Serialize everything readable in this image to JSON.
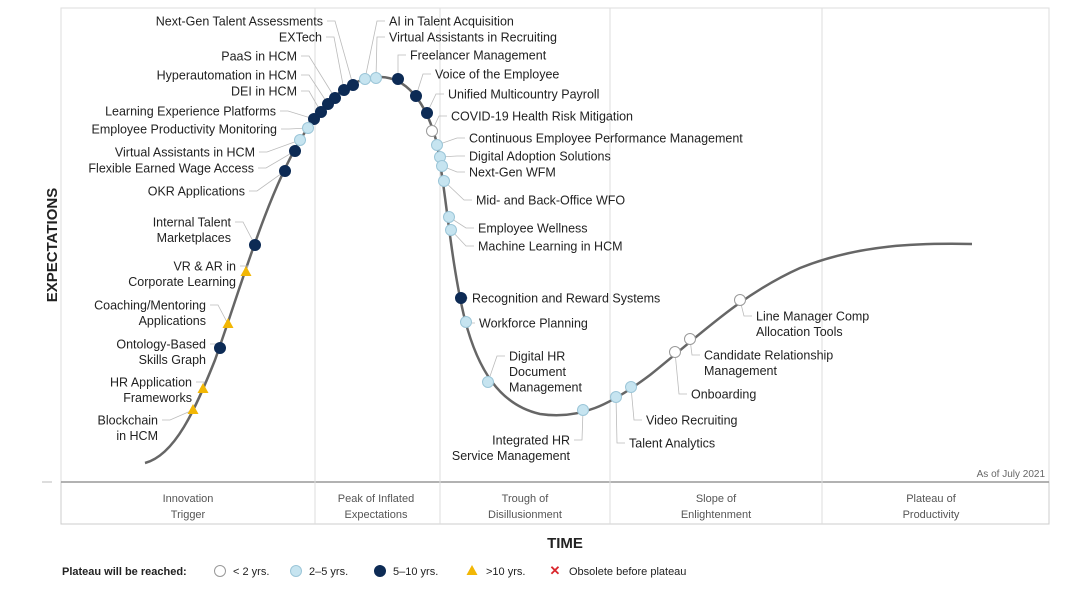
{
  "axis": {
    "y_label": "EXPECTATIONS",
    "x_label": "TIME"
  },
  "as_of": "As of July 2021",
  "phases": [
    [
      "Innovation",
      "Trigger"
    ],
    [
      "Peak of Inflated",
      "Expectations"
    ],
    [
      "Trough of",
      "Disillusionment"
    ],
    [
      "Slope of",
      "Enlightenment"
    ],
    [
      "Plateau of",
      "Productivity"
    ]
  ],
  "legend": {
    "title": "Plateau will be reached:",
    "entries": [
      {
        "key": "lt2",
        "label": "< 2 yrs."
      },
      {
        "key": "2to5",
        "label": "2–5 yrs."
      },
      {
        "key": "5to10",
        "label": "5–10 yrs."
      },
      {
        "key": "gt10",
        "label": ">10 yrs."
      },
      {
        "key": "obsolete",
        "label": "Obsolete before plateau"
      }
    ]
  },
  "colors": {
    "lt2": "#ffffff",
    "2to5": "#c6e4f0",
    "5to10": "#0d2b55",
    "gt10": "#f2b705",
    "obsolete": "#d9262c",
    "curve": "#666666"
  },
  "items": [
    {
      "label": [
        "Next-Gen Talent Assessments"
      ],
      "plateau": "5to10"
    },
    {
      "label": [
        "EXTech"
      ],
      "plateau": "5to10"
    },
    {
      "label": [
        "PaaS in HCM"
      ],
      "plateau": "5to10"
    },
    {
      "label": [
        "Hyperautomation in HCM"
      ],
      "plateau": "5to10"
    },
    {
      "label": [
        "DEI in HCM"
      ],
      "plateau": "5to10"
    },
    {
      "label": [
        "Learning Experience Platforms"
      ],
      "plateau": "5to10"
    },
    {
      "label": [
        "Employee Productivity Monitoring"
      ],
      "plateau": "2to5"
    },
    {
      "label": [
        "Virtual Assistants in HCM"
      ],
      "plateau": "2to5"
    },
    {
      "label": [
        "Flexible Earned Wage Access"
      ],
      "plateau": "5to10"
    },
    {
      "label": [
        "OKR Applications"
      ],
      "plateau": "5to10"
    },
    {
      "label": [
        "Internal Talent",
        "Marketplaces"
      ],
      "plateau": "5to10"
    },
    {
      "label": [
        "VR & AR in",
        "Corporate Learning"
      ],
      "plateau": "gt10"
    },
    {
      "label": [
        "Coaching/Mentoring",
        "Applications"
      ],
      "plateau": "gt10"
    },
    {
      "label": [
        "Ontology-Based",
        "Skills Graph"
      ],
      "plateau": "5to10"
    },
    {
      "label": [
        "HR Application",
        "Frameworks"
      ],
      "plateau": "gt10"
    },
    {
      "label": [
        "Blockchain",
        "in HCM"
      ],
      "plateau": "gt10"
    },
    {
      "label": [
        "AI in Talent Acquisition"
      ],
      "plateau": "2to5"
    },
    {
      "label": [
        "Virtual Assistants in Recruiting"
      ],
      "plateau": "2to5"
    },
    {
      "label": [
        "Freelancer Management"
      ],
      "plateau": "5to10"
    },
    {
      "label": [
        "Voice of the Employee"
      ],
      "plateau": "5to10"
    },
    {
      "label": [
        "Unified Multicountry Payroll"
      ],
      "plateau": "5to10"
    },
    {
      "label": [
        "COVID-19 Health Risk Mitigation"
      ],
      "plateau": "lt2"
    },
    {
      "label": [
        "Continuous Employee Performance Management"
      ],
      "plateau": "2to5"
    },
    {
      "label": [
        "Digital Adoption Solutions"
      ],
      "plateau": "2to5"
    },
    {
      "label": [
        "Next-Gen WFM"
      ],
      "plateau": "2to5"
    },
    {
      "label": [
        "Mid- and Back-Office WFO"
      ],
      "plateau": "2to5"
    },
    {
      "label": [
        "Employee Wellness"
      ],
      "plateau": "2to5"
    },
    {
      "label": [
        "Machine Learning in HCM"
      ],
      "plateau": "2to5"
    },
    {
      "label": [
        "Recognition and Reward Systems"
      ],
      "plateau": "5to10"
    },
    {
      "label": [
        "Workforce Planning"
      ],
      "plateau": "2to5"
    },
    {
      "label": [
        "Digital HR",
        "Document",
        "Management"
      ],
      "plateau": "2to5"
    },
    {
      "label": [
        "Integrated HR",
        "Service Management"
      ],
      "plateau": "2to5"
    },
    {
      "label": [
        "Talent Analytics"
      ],
      "plateau": "2to5"
    },
    {
      "label": [
        "Video Recruiting"
      ],
      "plateau": "2to5"
    },
    {
      "label": [
        "Onboarding"
      ],
      "plateau": "lt2"
    },
    {
      "label": [
        "Candidate Relationship",
        "Management"
      ],
      "plateau": "lt2"
    },
    {
      "label": [
        "Line Manager Comp",
        "Allocation Tools"
      ],
      "plateau": "lt2"
    }
  ]
}
